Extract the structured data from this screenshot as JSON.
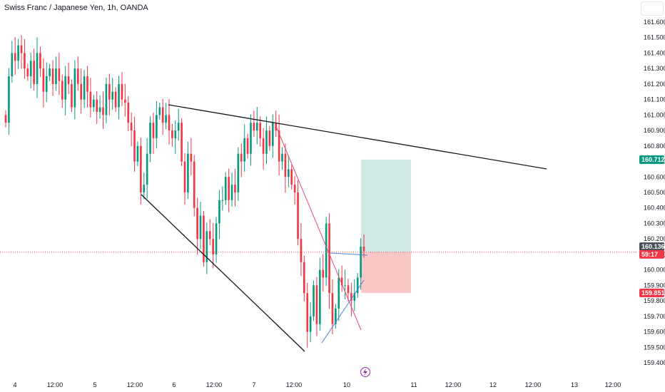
{
  "header": {
    "title": "Swiss Franc / Japanese Yen, 1h, OANDA"
  },
  "icons": {
    "corner": "settings-box",
    "lightning": "lightning-icon"
  },
  "colors": {
    "up": "#089981",
    "down": "#f23645",
    "trendline": "#131722",
    "pink_line": "#e84a7b",
    "blue_line": "#4f7fe0",
    "target_zone": "#cfe9e4",
    "stop_zone": "#fbc6c6",
    "green_badge": "#089981",
    "red_badge": "#f23645",
    "gray_badge": "#4a4f5a",
    "current_line": "#f23645",
    "lightning": "#9c27b0"
  },
  "chart_data": {
    "type": "candlestick",
    "title": "Swiss Franc / Japanese Yen, 1h, OANDA",
    "y_axis_ticks": [
      "161.600",
      "161.500",
      "161.400",
      "161.300",
      "161.200",
      "161.100",
      "161.000",
      "160.900",
      "160.800",
      "160.700",
      "160.600",
      "160.500",
      "160.400",
      "160.300",
      "160.200",
      "160.100",
      "160.000",
      "159.900",
      "159.800",
      "159.700",
      "159.600",
      "159.500",
      "159.400"
    ],
    "x_axis_ticks": [
      "4",
      "12:00",
      "5",
      "12:00",
      "6",
      "12:00",
      "7",
      "12:00",
      "10",
      "11",
      "12:00",
      "12",
      "12:00",
      "13",
      "12:00"
    ],
    "ylim": [
      159.35,
      161.7
    ],
    "badges": [
      {
        "label": "160.712",
        "value": 160.712,
        "kind": "green"
      },
      {
        "label": "160.136",
        "value": 160.136,
        "kind": "gray"
      },
      {
        "label": "59:17",
        "value": 160.114,
        "kind": "red"
      },
      {
        "label": "159.851",
        "value": 159.851,
        "kind": "red"
      }
    ],
    "current_price": 160.114,
    "long_position": {
      "entry": 160.114,
      "target": 160.712,
      "stop": 159.851
    },
    "closes": [
      160.95,
      161.25,
      161.4,
      161.35,
      161.45,
      161.4,
      161.3,
      161.25,
      161.35,
      161.2,
      161.4,
      161.3,
      161.15,
      161.25,
      161.3,
      161.2,
      161.3,
      161.22,
      161.1,
      161.25,
      161.2,
      161.05,
      161.3,
      161.2,
      161.1,
      161.25,
      161.15,
      161.05,
      161.1,
      161.02,
      161.05,
      161.0,
      161.2,
      161.1,
      161.15,
      161.05,
      161.2,
      161.1,
      161.08,
      160.95,
      160.9,
      160.7,
      160.8,
      160.5,
      160.55,
      160.75,
      160.95,
      160.85,
      161.0,
      161.05,
      160.95,
      161.0,
      160.9,
      160.85,
      160.9,
      160.95,
      160.7,
      160.5,
      160.75,
      160.7,
      160.4,
      160.2,
      160.35,
      160.05,
      160.25,
      160.2,
      160.1,
      160.3,
      160.45,
      160.45,
      160.6,
      160.45,
      160.55,
      160.5,
      160.75,
      160.7,
      160.85,
      160.75,
      160.95,
      160.9,
      160.95,
      160.85,
      160.75,
      160.9,
      160.8,
      160.95,
      160.9,
      160.7,
      160.75,
      160.6,
      160.65,
      160.55,
      160.5,
      160.2,
      160.05,
      159.85,
      159.6,
      159.7,
      159.9,
      159.65,
      160.0,
      159.95,
      160.3,
      159.85,
      159.65,
      159.75,
      159.95,
      159.9,
      159.9,
      159.85,
      159.8,
      159.85,
      159.95,
      160.15,
      160.12
    ]
  }
}
